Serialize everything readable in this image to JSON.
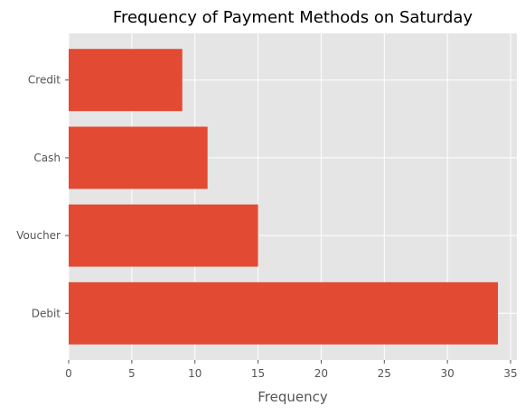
{
  "chart_data": {
    "type": "bar",
    "orientation": "horizontal",
    "title": "Frequency of Payment Methods on Saturday",
    "xlabel": "Frequency",
    "ylabel": "",
    "categories": [
      "Debit",
      "Voucher",
      "Cash",
      "Credit"
    ],
    "values": [
      34,
      15,
      11,
      9
    ],
    "xlim": [
      0,
      35.5
    ],
    "xticks": [
      0,
      5,
      10,
      15,
      20,
      25,
      30,
      35
    ],
    "grid": true,
    "legend": "none",
    "colors": {
      "bar": "#E24A33",
      "plot_background": "#E5E5E5",
      "grid": "#FFFFFF",
      "text": "#555555"
    }
  }
}
